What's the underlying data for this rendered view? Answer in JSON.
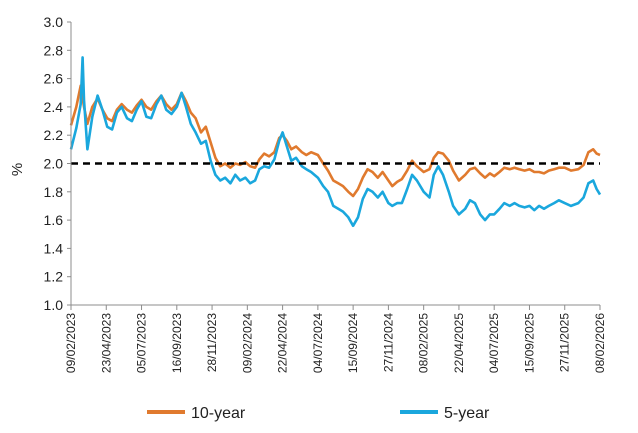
{
  "chart_data": {
    "type": "line",
    "title": "",
    "xlabel": "",
    "ylabel": "%",
    "ylim": [
      1.0,
      3.0
    ],
    "yticks": [
      "1.0",
      "1.2",
      "1.4",
      "1.6",
      "1.8",
      "2.0",
      "2.2",
      "2.4",
      "2.6",
      "2.8",
      "3.0"
    ],
    "xlim": [
      "09/02/2023",
      "08/02/2026"
    ],
    "xticks": [
      "09/02/2023",
      "23/04/2023",
      "05/07/2023",
      "16/09/2023",
      "28/11/2023",
      "09/02/2024",
      "22/04/2024",
      "04/07/2024",
      "15/09/2024",
      "27/11/2024",
      "08/02/2025",
      "22/04/2025",
      "04/07/2025",
      "15/09/2025",
      "27/11/2025",
      "08/02/2026"
    ],
    "reference_line": {
      "y": 2.0,
      "style": "dashed",
      "color": "#000000"
    },
    "grid": false,
    "legend": "bottom",
    "series": [
      {
        "name": "10-year",
        "color": "#E07A2E",
        "points": [
          [
            "2023-02-09",
            2.27
          ],
          [
            "2023-02-20",
            2.4
          ],
          [
            "2023-03-01",
            2.55
          ],
          [
            "2023-03-08",
            2.4
          ],
          [
            "2023-03-15",
            2.28
          ],
          [
            "2023-03-25",
            2.4
          ],
          [
            "2023-04-05",
            2.46
          ],
          [
            "2023-04-15",
            2.38
          ],
          [
            "2023-04-25",
            2.32
          ],
          [
            "2023-05-05",
            2.3
          ],
          [
            "2023-05-15",
            2.38
          ],
          [
            "2023-05-25",
            2.42
          ],
          [
            "2023-06-05",
            2.38
          ],
          [
            "2023-06-15",
            2.36
          ],
          [
            "2023-06-25",
            2.41
          ],
          [
            "2023-07-05",
            2.45
          ],
          [
            "2023-07-15",
            2.4
          ],
          [
            "2023-07-25",
            2.38
          ],
          [
            "2023-08-05",
            2.44
          ],
          [
            "2023-08-15",
            2.48
          ],
          [
            "2023-08-25",
            2.42
          ],
          [
            "2023-09-05",
            2.38
          ],
          [
            "2023-09-16",
            2.42
          ],
          [
            "2023-09-26",
            2.5
          ],
          [
            "2023-10-05",
            2.44
          ],
          [
            "2023-10-15",
            2.36
          ],
          [
            "2023-10-25",
            2.32
          ],
          [
            "2023-11-05",
            2.22
          ],
          [
            "2023-11-15",
            2.26
          ],
          [
            "2023-11-25",
            2.15
          ],
          [
            "2023-12-05",
            2.04
          ],
          [
            "2023-12-15",
            1.98
          ],
          [
            "2023-12-25",
            2.0
          ],
          [
            "2024-01-05",
            1.97
          ],
          [
            "2024-01-15",
            2.0
          ],
          [
            "2024-01-25",
            1.99
          ],
          [
            "2024-02-05",
            2.01
          ],
          [
            "2024-02-15",
            1.98
          ],
          [
            "2024-02-25",
            1.97
          ],
          [
            "2024-03-05",
            2.03
          ],
          [
            "2024-03-15",
            2.07
          ],
          [
            "2024-03-25",
            2.05
          ],
          [
            "2024-04-05",
            2.08
          ],
          [
            "2024-04-15",
            2.18
          ],
          [
            "2024-04-22",
            2.2
          ],
          [
            "2024-05-01",
            2.16
          ],
          [
            "2024-05-10",
            2.1
          ],
          [
            "2024-05-20",
            2.12
          ],
          [
            "2024-06-01",
            2.08
          ],
          [
            "2024-06-10",
            2.06
          ],
          [
            "2024-06-20",
            2.08
          ],
          [
            "2024-07-04",
            2.06
          ],
          [
            "2024-07-15",
            2.0
          ],
          [
            "2024-07-25",
            1.95
          ],
          [
            "2024-08-05",
            1.88
          ],
          [
            "2024-08-15",
            1.86
          ],
          [
            "2024-08-25",
            1.84
          ],
          [
            "2024-09-05",
            1.8
          ],
          [
            "2024-09-15",
            1.77
          ],
          [
            "2024-09-25",
            1.82
          ],
          [
            "2024-10-05",
            1.9
          ],
          [
            "2024-10-15",
            1.96
          ],
          [
            "2024-10-25",
            1.94
          ],
          [
            "2024-11-05",
            1.9
          ],
          [
            "2024-11-15",
            1.94
          ],
          [
            "2024-11-27",
            1.88
          ],
          [
            "2024-12-05",
            1.84
          ],
          [
            "2024-12-15",
            1.87
          ],
          [
            "2024-12-25",
            1.89
          ],
          [
            "2025-01-05",
            1.95
          ],
          [
            "2025-01-15",
            2.02
          ],
          [
            "2025-01-25",
            1.98
          ],
          [
            "2025-02-08",
            1.94
          ],
          [
            "2025-02-20",
            1.96
          ],
          [
            "2025-03-01",
            2.04
          ],
          [
            "2025-03-10",
            2.08
          ],
          [
            "2025-03-20",
            2.07
          ],
          [
            "2025-04-01",
            2.02
          ],
          [
            "2025-04-10",
            1.95
          ],
          [
            "2025-04-22",
            1.88
          ],
          [
            "2025-05-05",
            1.92
          ],
          [
            "2025-05-15",
            1.96
          ],
          [
            "2025-05-25",
            1.97
          ],
          [
            "2025-06-05",
            1.93
          ],
          [
            "2025-06-15",
            1.9
          ],
          [
            "2025-06-25",
            1.93
          ],
          [
            "2025-07-04",
            1.91
          ],
          [
            "2025-07-15",
            1.94
          ],
          [
            "2025-07-25",
            1.97
          ],
          [
            "2025-08-05",
            1.96
          ],
          [
            "2025-08-15",
            1.97
          ],
          [
            "2025-08-25",
            1.96
          ],
          [
            "2025-09-05",
            1.95
          ],
          [
            "2025-09-15",
            1.96
          ],
          [
            "2025-09-25",
            1.94
          ],
          [
            "2025-10-05",
            1.94
          ],
          [
            "2025-10-15",
            1.93
          ],
          [
            "2025-10-25",
            1.95
          ],
          [
            "2025-11-05",
            1.96
          ],
          [
            "2025-11-15",
            1.97
          ],
          [
            "2025-11-27",
            1.97
          ],
          [
            "2025-12-10",
            1.95
          ],
          [
            "2025-12-25",
            1.96
          ],
          [
            "2026-01-05",
            1.99
          ],
          [
            "2026-01-15",
            2.08
          ],
          [
            "2026-01-25",
            2.1
          ],
          [
            "2026-02-01",
            2.07
          ],
          [
            "2026-02-08",
            2.06
          ]
        ]
      },
      {
        "name": "5-year",
        "color": "#1AA7DD",
        "points": [
          [
            "2023-02-09",
            2.1
          ],
          [
            "2023-02-20",
            2.25
          ],
          [
            "2023-03-01",
            2.42
          ],
          [
            "2023-03-05",
            2.75
          ],
          [
            "2023-03-08",
            2.45
          ],
          [
            "2023-03-15",
            2.1
          ],
          [
            "2023-03-25",
            2.33
          ],
          [
            "2023-04-05",
            2.48
          ],
          [
            "2023-04-15",
            2.38
          ],
          [
            "2023-04-25",
            2.26
          ],
          [
            "2023-05-05",
            2.24
          ],
          [
            "2023-05-15",
            2.36
          ],
          [
            "2023-05-25",
            2.4
          ],
          [
            "2023-06-05",
            2.32
          ],
          [
            "2023-06-15",
            2.3
          ],
          [
            "2023-06-25",
            2.38
          ],
          [
            "2023-07-05",
            2.44
          ],
          [
            "2023-07-15",
            2.33
          ],
          [
            "2023-07-25",
            2.32
          ],
          [
            "2023-08-05",
            2.42
          ],
          [
            "2023-08-15",
            2.48
          ],
          [
            "2023-08-25",
            2.38
          ],
          [
            "2023-09-05",
            2.35
          ],
          [
            "2023-09-16",
            2.4
          ],
          [
            "2023-09-26",
            2.5
          ],
          [
            "2023-10-05",
            2.4
          ],
          [
            "2023-10-15",
            2.28
          ],
          [
            "2023-10-25",
            2.22
          ],
          [
            "2023-11-05",
            2.14
          ],
          [
            "2023-11-15",
            2.16
          ],
          [
            "2023-11-25",
            2.02
          ],
          [
            "2023-12-05",
            1.92
          ],
          [
            "2023-12-15",
            1.88
          ],
          [
            "2023-12-25",
            1.9
          ],
          [
            "2024-01-05",
            1.86
          ],
          [
            "2024-01-15",
            1.92
          ],
          [
            "2024-01-25",
            1.88
          ],
          [
            "2024-02-05",
            1.9
          ],
          [
            "2024-02-15",
            1.86
          ],
          [
            "2024-02-25",
            1.88
          ],
          [
            "2024-03-05",
            1.96
          ],
          [
            "2024-03-15",
            1.98
          ],
          [
            "2024-03-25",
            1.97
          ],
          [
            "2024-04-05",
            2.03
          ],
          [
            "2024-04-15",
            2.16
          ],
          [
            "2024-04-22",
            2.22
          ],
          [
            "2024-05-01",
            2.12
          ],
          [
            "2024-05-10",
            2.02
          ],
          [
            "2024-05-20",
            2.04
          ],
          [
            "2024-06-01",
            1.98
          ],
          [
            "2024-06-10",
            1.96
          ],
          [
            "2024-06-20",
            1.94
          ],
          [
            "2024-07-04",
            1.9
          ],
          [
            "2024-07-15",
            1.84
          ],
          [
            "2024-07-25",
            1.8
          ],
          [
            "2024-08-05",
            1.7
          ],
          [
            "2024-08-15",
            1.68
          ],
          [
            "2024-08-25",
            1.66
          ],
          [
            "2024-09-05",
            1.62
          ],
          [
            "2024-09-15",
            1.56
          ],
          [
            "2024-09-25",
            1.62
          ],
          [
            "2024-10-05",
            1.75
          ],
          [
            "2024-10-15",
            1.82
          ],
          [
            "2024-10-25",
            1.8
          ],
          [
            "2024-11-05",
            1.76
          ],
          [
            "2024-11-15",
            1.8
          ],
          [
            "2024-11-27",
            1.72
          ],
          [
            "2024-12-05",
            1.7
          ],
          [
            "2024-12-15",
            1.72
          ],
          [
            "2024-12-25",
            1.72
          ],
          [
            "2025-01-05",
            1.82
          ],
          [
            "2025-01-15",
            1.92
          ],
          [
            "2025-01-25",
            1.88
          ],
          [
            "2025-02-08",
            1.8
          ],
          [
            "2025-02-20",
            1.76
          ],
          [
            "2025-03-01",
            1.92
          ],
          [
            "2025-03-10",
            1.98
          ],
          [
            "2025-03-20",
            1.92
          ],
          [
            "2025-04-01",
            1.8
          ],
          [
            "2025-04-10",
            1.7
          ],
          [
            "2025-04-22",
            1.64
          ],
          [
            "2025-05-05",
            1.68
          ],
          [
            "2025-05-15",
            1.74
          ],
          [
            "2025-05-25",
            1.72
          ],
          [
            "2025-06-05",
            1.64
          ],
          [
            "2025-06-15",
            1.6
          ],
          [
            "2025-06-25",
            1.64
          ],
          [
            "2025-07-04",
            1.64
          ],
          [
            "2025-07-15",
            1.68
          ],
          [
            "2025-07-25",
            1.72
          ],
          [
            "2025-08-05",
            1.7
          ],
          [
            "2025-08-15",
            1.72
          ],
          [
            "2025-08-25",
            1.7
          ],
          [
            "2025-09-05",
            1.69
          ],
          [
            "2025-09-15",
            1.7
          ],
          [
            "2025-09-25",
            1.67
          ],
          [
            "2025-10-05",
            1.7
          ],
          [
            "2025-10-15",
            1.68
          ],
          [
            "2025-10-25",
            1.7
          ],
          [
            "2025-11-05",
            1.72
          ],
          [
            "2025-11-15",
            1.74
          ],
          [
            "2025-11-27",
            1.72
          ],
          [
            "2025-12-10",
            1.7
          ],
          [
            "2025-12-25",
            1.72
          ],
          [
            "2026-01-05",
            1.76
          ],
          [
            "2026-01-15",
            1.86
          ],
          [
            "2026-01-25",
            1.88
          ],
          [
            "2026-02-01",
            1.82
          ],
          [
            "2026-02-08",
            1.78
          ]
        ]
      }
    ]
  }
}
